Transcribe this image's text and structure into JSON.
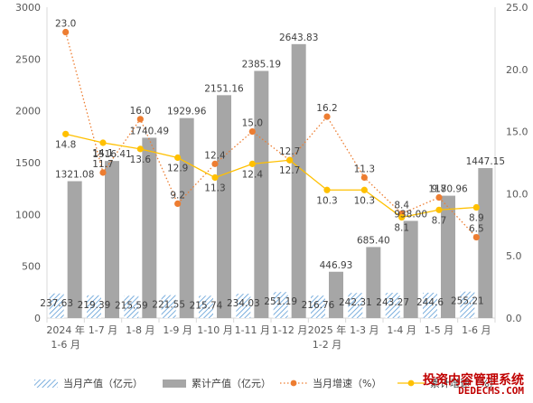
{
  "chart_data": {
    "type": "bar+line",
    "categories": [
      [
        "2024 年",
        "1-6 月"
      ],
      [
        "1-7 月"
      ],
      [
        "1-8 月"
      ],
      [
        "1-9 月"
      ],
      [
        "1-10 月"
      ],
      [
        "1-11 月"
      ],
      [
        "1-12 月"
      ],
      [
        "2025 年",
        "1-2 月"
      ],
      [
        "1-3 月"
      ],
      [
        "1-4 月"
      ],
      [
        "1-5 月"
      ],
      [
        "1-6 月"
      ]
    ],
    "series": [
      {
        "name": "当月产值（亿元）",
        "kind": "bar",
        "axis": "left",
        "pattern": "hatched",
        "values": [
          237.63,
          219.39,
          215.59,
          221.55,
          215.74,
          234.03,
          251.19,
          216.76,
          242.31,
          243.27,
          244.6,
          255.21
        ]
      },
      {
        "name": "累计产值（亿元）",
        "kind": "bar",
        "axis": "left",
        "color": "#a6a6a6",
        "values": [
          1321.08,
          1516.41,
          1740.49,
          1929.96,
          2151.16,
          2385.19,
          2643.83,
          446.93,
          685.4,
          938.0,
          1180.96,
          1447.15
        ],
        "labels": [
          "1321.08",
          "1516.41",
          "1740.49",
          "1929.96",
          "2151.16",
          "2385.19",
          "2643.83",
          "446.93",
          "685.40",
          "938.00",
          "1180.96",
          "1447.15"
        ]
      },
      {
        "name": "当月增速（%）",
        "kind": "line",
        "axis": "right",
        "style": "dotted",
        "color": "#ed7d31",
        "values": [
          23.0,
          11.7,
          16.0,
          9.2,
          12.4,
          15.0,
          12.7,
          16.2,
          11.3,
          8.4,
          9.7,
          6.5
        ]
      },
      {
        "name": "累计增速（%）",
        "kind": "line",
        "axis": "right",
        "style": "solid",
        "color": "#ffc000",
        "values": [
          14.8,
          14.1,
          13.6,
          12.9,
          11.3,
          12.4,
          12.7,
          10.3,
          10.3,
          8.1,
          8.7,
          8.9
        ]
      }
    ],
    "y_left": {
      "min": 0,
      "max": 3000,
      "step": 500,
      "ticks": [
        "0",
        "500",
        "1000",
        "1500",
        "2000",
        "2500",
        "3000"
      ]
    },
    "y_right": {
      "min": 0,
      "max": 25,
      "step": 5,
      "ticks": [
        "0.0",
        "5.0",
        "10.0",
        "15.0",
        "20.0",
        "25.0"
      ]
    },
    "legend_position": "bottom",
    "gridlines": false
  },
  "watermark": {
    "line1": "投资内容管理系统",
    "line2": "DEDECMS.COM"
  }
}
